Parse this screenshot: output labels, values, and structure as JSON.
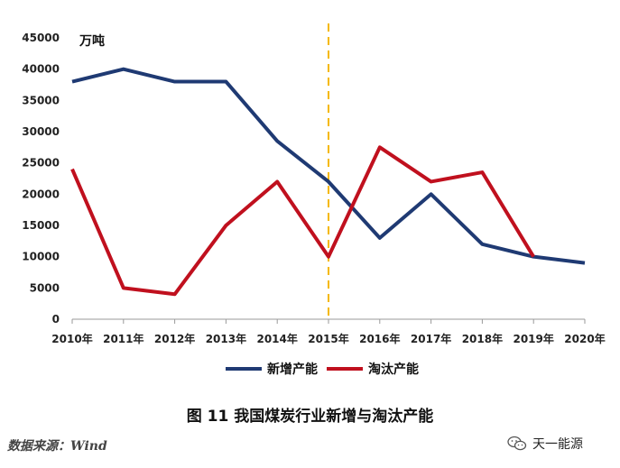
{
  "chart_data": {
    "type": "line",
    "categories": [
      "2010年",
      "2011年",
      "2012年",
      "2013年",
      "2014年",
      "2015年",
      "2016年",
      "2017年",
      "2018年",
      "2019年",
      "2020年"
    ],
    "series": [
      {
        "name": "新增产能",
        "color": "#1f3a73",
        "values": [
          38000,
          40000,
          38000,
          38000,
          28500,
          22000,
          13000,
          20000,
          12000,
          10000,
          9000
        ]
      },
      {
        "name": "淘汰产能",
        "color": "#c0101e",
        "values": [
          24000,
          5000,
          4000,
          15000,
          22000,
          10000,
          27500,
          22000,
          23500,
          10000,
          null
        ]
      }
    ],
    "ylim": [
      0,
      45000
    ],
    "yticks": [
      0,
      5000,
      10000,
      15000,
      20000,
      25000,
      30000,
      35000,
      40000,
      45000
    ],
    "ylabel": "万吨",
    "reference_line": {
      "category": "2015年",
      "color": "#f5b800",
      "style": "dashed"
    },
    "title": "图 11 我国煤炭行业新增与淘汰产能",
    "legend": "bottom"
  },
  "source_text": "数据来源：Wind",
  "brand_text": "天一能源"
}
